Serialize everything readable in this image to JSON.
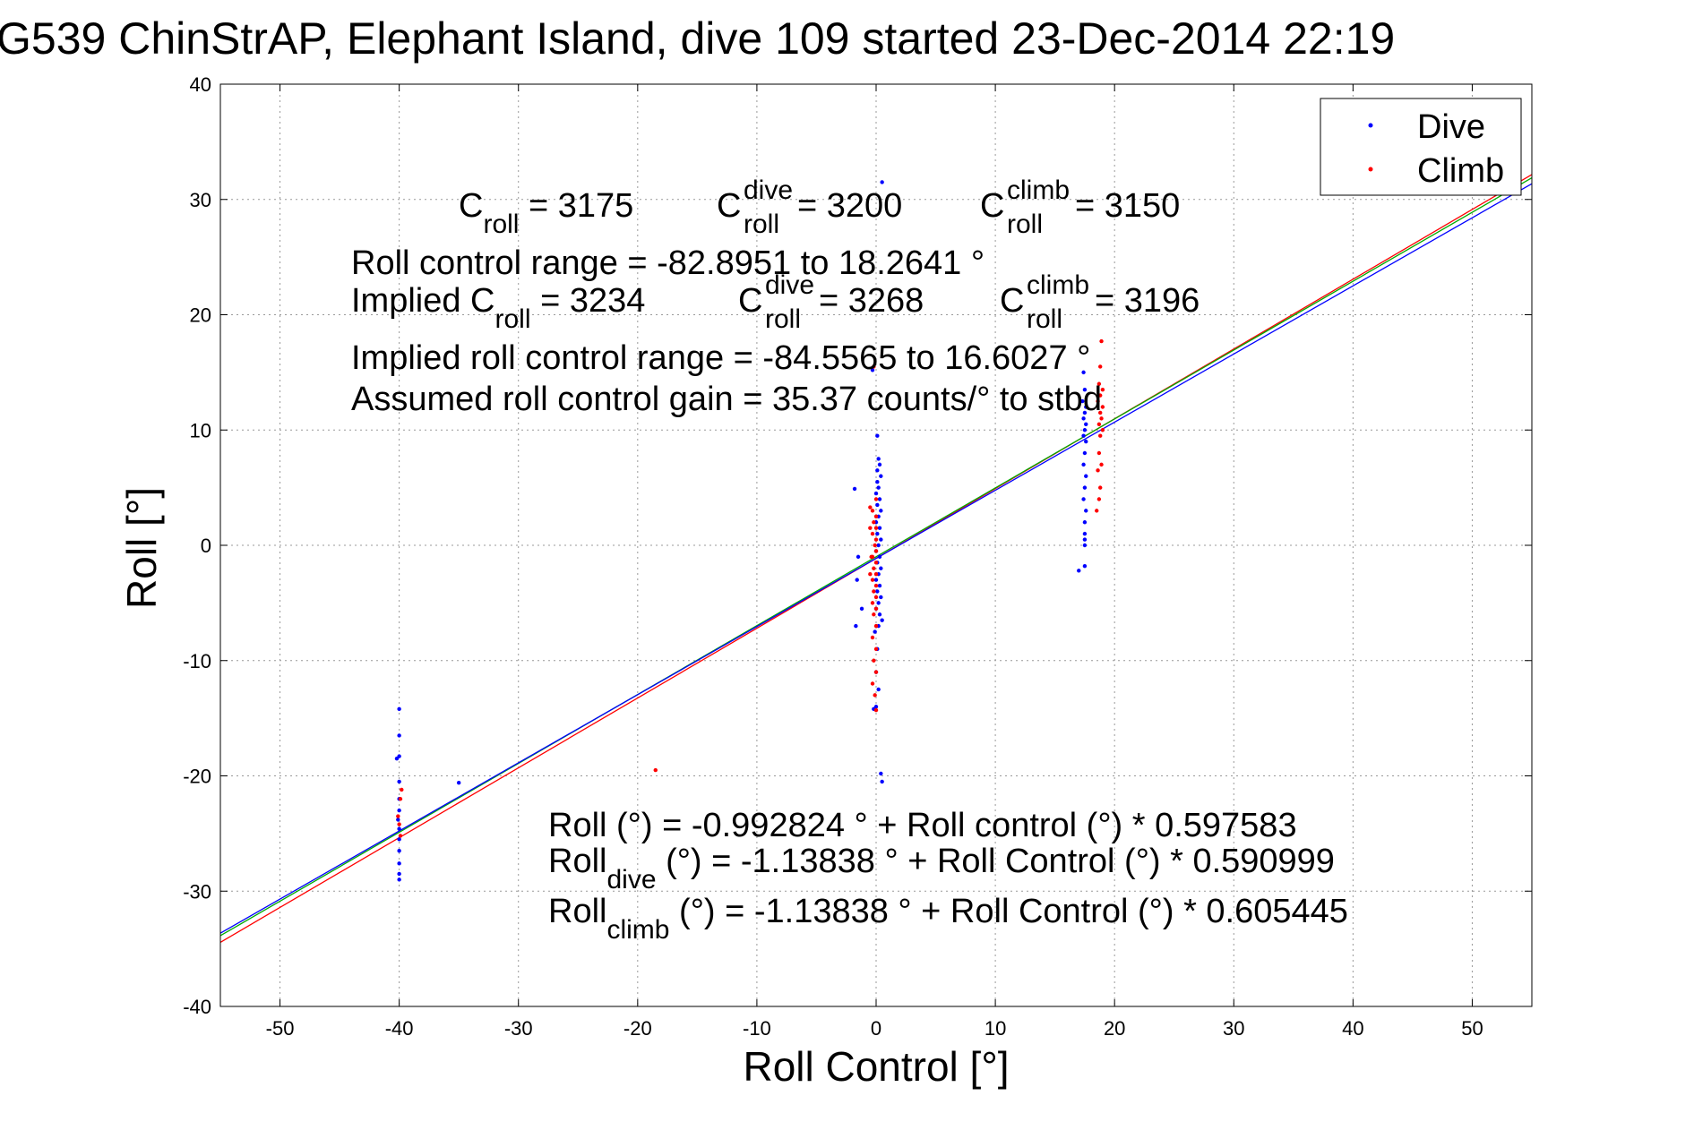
{
  "chart_data": {
    "type": "scatter",
    "title": "G539 ChinStrAP, Elephant Island, dive 109 started 23-Dec-2014 22:19",
    "xlabel": "Roll Control [°]",
    "ylabel": "Roll [°]",
    "xlim": [
      -55,
      55
    ],
    "ylim": [
      -40,
      40
    ],
    "xticks": [
      -50,
      -40,
      -30,
      -20,
      -10,
      0,
      10,
      20,
      30,
      40,
      50
    ],
    "yticks": [
      -40,
      -30,
      -20,
      -10,
      0,
      10,
      20,
      30,
      40
    ],
    "grid": true,
    "legend": {
      "placement": "top-right",
      "entries": [
        {
          "name": "Dive",
          "color": "#0000ff"
        },
        {
          "name": "Climb",
          "color": "#ff0000"
        }
      ]
    },
    "series": [
      {
        "name": "Dive",
        "color": "#0000ff",
        "points": [
          [
            -40,
            -14.2
          ],
          [
            -40,
            -16.5
          ],
          [
            -40,
            -18.3
          ],
          [
            -40.2,
            -18.5
          ],
          [
            -40,
            -20.5
          ],
          [
            -40,
            -22
          ],
          [
            -40,
            -23
          ],
          [
            -40.1,
            -23.8
          ],
          [
            -40,
            -24.6
          ],
          [
            -40,
            -25.5
          ],
          [
            -40,
            -26.5
          ],
          [
            -40,
            -27.6
          ],
          [
            -40,
            -28.5
          ],
          [
            -40,
            -29
          ],
          [
            -35,
            -20.6
          ],
          [
            -1.8,
            4.9
          ],
          [
            -1.5,
            -1
          ],
          [
            -1.6,
            -3
          ],
          [
            -1.7,
            -7
          ],
          [
            -1.2,
            -5.5
          ],
          [
            -0.3,
            15.2
          ],
          [
            0.1,
            9.5
          ],
          [
            0.2,
            7.5
          ],
          [
            0.3,
            7
          ],
          [
            0.1,
            6.5
          ],
          [
            0.4,
            6
          ],
          [
            0.1,
            5.5
          ],
          [
            0.2,
            5
          ],
          [
            0,
            4.5
          ],
          [
            0.3,
            4
          ],
          [
            0.1,
            3.5
          ],
          [
            0.4,
            3
          ],
          [
            0.2,
            2.5
          ],
          [
            0,
            2
          ],
          [
            0.3,
            1.5
          ],
          [
            0.1,
            1
          ],
          [
            0.4,
            0.5
          ],
          [
            0.2,
            0
          ],
          [
            0,
            -0.5
          ],
          [
            0.3,
            -1
          ],
          [
            0.1,
            -1.5
          ],
          [
            0.4,
            -2
          ],
          [
            0.2,
            -2.5
          ],
          [
            0,
            -3
          ],
          [
            0.3,
            -3.5
          ],
          [
            0.1,
            -4
          ],
          [
            0.4,
            -4.5
          ],
          [
            0.2,
            -5
          ],
          [
            0,
            -5.5
          ],
          [
            0.3,
            -6
          ],
          [
            0.5,
            -6.5
          ],
          [
            0.2,
            -7
          ],
          [
            -0.1,
            -7.5
          ],
          [
            0.1,
            -9
          ],
          [
            0,
            -11
          ],
          [
            0.2,
            -12.5
          ],
          [
            0,
            -14
          ],
          [
            -0.2,
            -14.2
          ],
          [
            0.4,
            -19.8
          ],
          [
            0.5,
            -20.5
          ],
          [
            0.5,
            31.5
          ],
          [
            17.4,
            15
          ],
          [
            17.5,
            13.5
          ],
          [
            17.3,
            12.5
          ],
          [
            17.6,
            12
          ],
          [
            17.5,
            11.5
          ],
          [
            17.4,
            11
          ],
          [
            17.6,
            10.5
          ],
          [
            17.5,
            10
          ],
          [
            17.4,
            9.5
          ],
          [
            17.6,
            9
          ],
          [
            17.5,
            8
          ],
          [
            17.4,
            7
          ],
          [
            17.6,
            6
          ],
          [
            17.5,
            5
          ],
          [
            17.4,
            4
          ],
          [
            17.6,
            3
          ],
          [
            17.5,
            2
          ],
          [
            17.5,
            1
          ],
          [
            17.5,
            0.5
          ],
          [
            17.5,
            0
          ],
          [
            17,
            -2.2
          ],
          [
            17.5,
            -1.8
          ]
        ]
      },
      {
        "name": "Climb",
        "color": "#ff0000",
        "points": [
          [
            -39.8,
            -21.2
          ],
          [
            -39.9,
            -22
          ],
          [
            -40.1,
            -23.5
          ],
          [
            -40,
            -24.2
          ],
          [
            -39.9,
            -25.2
          ],
          [
            -18.5,
            -19.5
          ],
          [
            -0.5,
            3.3
          ],
          [
            -0.5,
            1.5
          ],
          [
            -0.4,
            -1
          ],
          [
            -0.5,
            -2.5
          ],
          [
            -0.2,
            15.5
          ],
          [
            0,
            4
          ],
          [
            -0.3,
            3
          ],
          [
            0,
            2.5
          ],
          [
            -0.2,
            2
          ],
          [
            0,
            1.5
          ],
          [
            -0.3,
            1
          ],
          [
            0,
            0.5
          ],
          [
            -0.1,
            0
          ],
          [
            0,
            -0.5
          ],
          [
            -0.3,
            -1
          ],
          [
            0,
            -1.5
          ],
          [
            -0.2,
            -2
          ],
          [
            0,
            -2.5
          ],
          [
            -0.3,
            -3
          ],
          [
            0,
            -3.5
          ],
          [
            -0.2,
            -4
          ],
          [
            0,
            -4.5
          ],
          [
            -0.3,
            -5
          ],
          [
            0,
            -5.5
          ],
          [
            -0.2,
            -6
          ],
          [
            0,
            -7
          ],
          [
            -0.3,
            -8
          ],
          [
            0,
            -9
          ],
          [
            -0.2,
            -10
          ],
          [
            0,
            -11
          ],
          [
            -0.3,
            -12
          ],
          [
            -0.1,
            -13
          ],
          [
            0,
            -14.3
          ],
          [
            18.9,
            17.7
          ],
          [
            18.8,
            15.5
          ],
          [
            18.7,
            14
          ],
          [
            19,
            13.5
          ],
          [
            18.8,
            13
          ],
          [
            18.6,
            12.5
          ],
          [
            19,
            12
          ],
          [
            18.8,
            11.5
          ],
          [
            18.9,
            11
          ],
          [
            18.7,
            10.5
          ],
          [
            19,
            10
          ],
          [
            18.8,
            9.5
          ],
          [
            18.7,
            8
          ],
          [
            18.9,
            7
          ],
          [
            18.6,
            6.5
          ],
          [
            18.8,
            5
          ],
          [
            18.7,
            4
          ],
          [
            18.5,
            3
          ]
        ]
      }
    ],
    "fit_lines": [
      {
        "color": "#ff0000",
        "intercept": -1.13838,
        "slope": 0.605445
      },
      {
        "color": "#00aa00",
        "intercept": -0.992824,
        "slope": 0.597583
      },
      {
        "color": "#0000ff",
        "intercept": -1.13838,
        "slope": 0.590999
      }
    ],
    "annotations": {
      "c_roll": {
        "base": "C",
        "sub": "roll",
        "value": " = 3175"
      },
      "c_roll_dive": {
        "base": "C",
        "sup": "dive",
        "sub": "roll",
        "value": " = 3200"
      },
      "c_roll_climb": {
        "base": "C",
        "sup": "climb",
        "sub": "roll",
        "value": " = 3150"
      },
      "roll_control_range": "Roll control range = -82.8951 to 18.2641 °",
      "implied_prefix": "Implied C",
      "implied_sub": "roll",
      "implied_value": " = 3234",
      "implied_dive": {
        "base": "C",
        "sup": "dive",
        "sub": "roll",
        "value": " = 3268"
      },
      "implied_climb": {
        "base": "C",
        "sup": "climb",
        "sub": "roll",
        "value": " = 3196"
      },
      "implied_range": "Implied roll control range = -84.5565 to 16.6027 °",
      "gain": "Assumed roll control gain = 35.37 counts/° to stbd",
      "fit_all": "Roll (°) = -0.992824 ° + Roll control (°) * 0.597583",
      "fit_dive": {
        "base": "Roll",
        "sub": "dive",
        "rest": " (°) = -1.13838 ° + Roll Control (°) * 0.590999"
      },
      "fit_climb": {
        "base": "Roll",
        "sub": "climb",
        "rest": " (°) = -1.13838 ° + Roll Control (°) * 0.605445"
      }
    }
  }
}
